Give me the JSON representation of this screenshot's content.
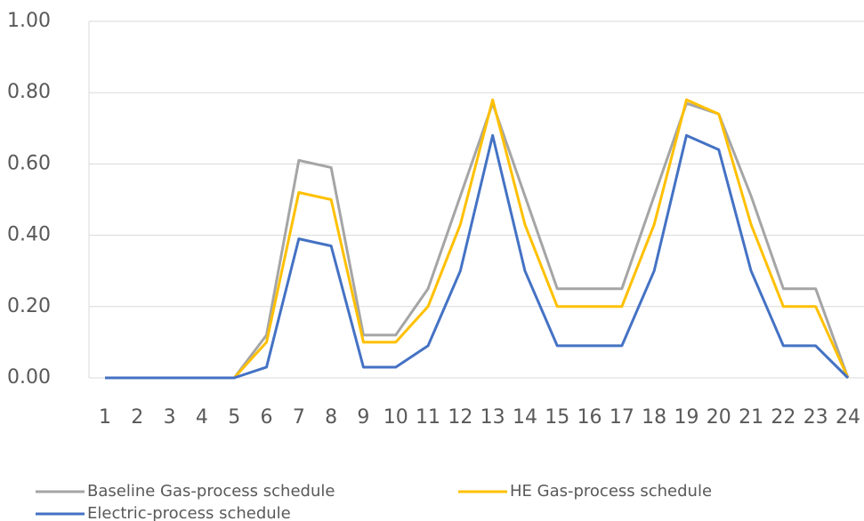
{
  "chart_data": {
    "type": "line",
    "categories": [
      "1",
      "2",
      "3",
      "4",
      "5",
      "6",
      "7",
      "8",
      "9",
      "10",
      "11",
      "12",
      "13",
      "14",
      "15",
      "16",
      "17",
      "18",
      "19",
      "20",
      "21",
      "22",
      "23",
      "24"
    ],
    "series": [
      {
        "name": "Baseline Gas-process schedule",
        "color": "#a5a5a5",
        "values": [
          0,
          0,
          0,
          0,
          0,
          0.12,
          0.61,
          0.59,
          0.12,
          0.12,
          0.25,
          0.51,
          0.77,
          0.51,
          0.25,
          0.25,
          0.25,
          0.51,
          0.77,
          0.74,
          0.51,
          0.25,
          0.25,
          0
        ]
      },
      {
        "name": "HE Gas-process schedule",
        "color": "#ffc000",
        "values": [
          0,
          0,
          0,
          0,
          0,
          0.1,
          0.52,
          0.5,
          0.1,
          0.1,
          0.2,
          0.43,
          0.78,
          0.43,
          0.2,
          0.2,
          0.2,
          0.43,
          0.78,
          0.74,
          0.43,
          0.2,
          0.2,
          0
        ]
      },
      {
        "name": "Electric-process schedule",
        "color": "#4472c4",
        "values": [
          0,
          0,
          0,
          0,
          0,
          0.03,
          0.39,
          0.37,
          0.03,
          0.03,
          0.09,
          0.3,
          0.68,
          0.3,
          0.09,
          0.09,
          0.09,
          0.3,
          0.68,
          0.64,
          0.3,
          0.09,
          0.09,
          0
        ]
      }
    ],
    "ylim": [
      0,
      1
    ],
    "yticks": [
      {
        "value": 0,
        "label": "0.00"
      },
      {
        "value": 0.2,
        "label": "0.20"
      },
      {
        "value": 0.4,
        "label": "0.40"
      },
      {
        "value": 0.6,
        "label": "0.60"
      },
      {
        "value": 0.8,
        "label": "0.80"
      },
      {
        "value": 1,
        "label": "1.00"
      }
    ],
    "grid": true
  }
}
